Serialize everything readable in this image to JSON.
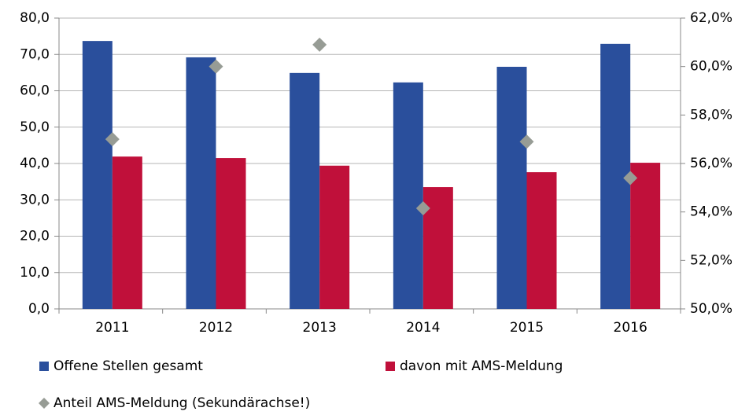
{
  "chart_data": {
    "type": "bar",
    "categories": [
      "2011",
      "2012",
      "2013",
      "2014",
      "2015",
      "2016"
    ],
    "series": [
      {
        "name": "Offene Stellen gesamt",
        "color": "#2a4f9c",
        "values": [
          73.7,
          69.2,
          64.9,
          62.3,
          66.6,
          72.9
        ]
      },
      {
        "name": "davon mit AMS-Meldung",
        "color": "#c0103a",
        "values": [
          41.9,
          41.5,
          39.4,
          33.5,
          37.6,
          40.2
        ]
      },
      {
        "name": "Anteil AMS-Meldung (Sekundärachse!)",
        "color": "#979c95",
        "type": "scatter",
        "axis": "y2",
        "values": [
          57.0,
          60.0,
          60.9,
          54.15,
          56.9,
          55.4
        ]
      }
    ],
    "ylim": [
      0,
      80
    ],
    "yticks": [
      {
        "value": 0,
        "label": "0,0"
      },
      {
        "value": 10,
        "label": "10,0"
      },
      {
        "value": 20,
        "label": "20,0"
      },
      {
        "value": 30,
        "label": "30,0"
      },
      {
        "value": 40,
        "label": "40,0"
      },
      {
        "value": 50,
        "label": "50,0"
      },
      {
        "value": 60,
        "label": "60,0"
      },
      {
        "value": 70,
        "label": "70,0"
      },
      {
        "value": 80,
        "label": "80,0"
      }
    ],
    "y2lim": [
      50,
      62
    ],
    "y2ticks": [
      {
        "value": 50,
        "label": "50,0%"
      },
      {
        "value": 52,
        "label": "52,0%"
      },
      {
        "value": 54,
        "label": "54,0%"
      },
      {
        "value": 56,
        "label": "56,0%"
      },
      {
        "value": 58,
        "label": "58,0%"
      },
      {
        "value": 60,
        "label": "60,0%"
      },
      {
        "value": 62,
        "label": "62,0%"
      }
    ],
    "grid": true,
    "legend": "bottom"
  }
}
